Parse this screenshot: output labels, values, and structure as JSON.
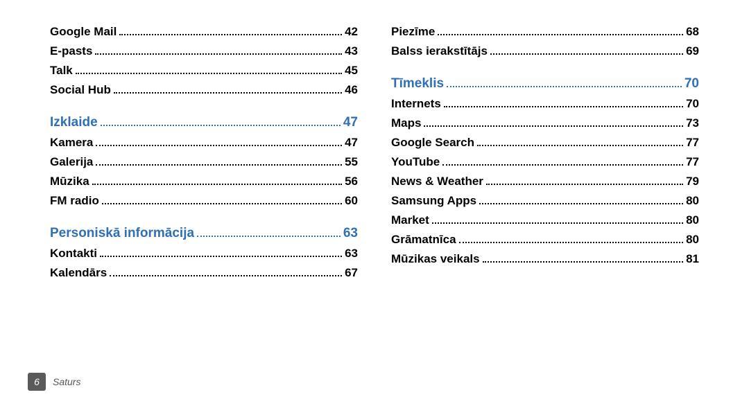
{
  "columns": [
    {
      "entries": [
        {
          "type": "item",
          "label": "Google Mail",
          "page": "42"
        },
        {
          "type": "item",
          "label": "E-pasts",
          "page": "43"
        },
        {
          "type": "item",
          "label": "Talk",
          "page": "45"
        },
        {
          "type": "item",
          "label": "Social Hub",
          "page": "46"
        },
        {
          "type": "section",
          "label": "Izklaide",
          "page": "47"
        },
        {
          "type": "item",
          "label": "Kamera",
          "page": "47"
        },
        {
          "type": "item",
          "label": "Galerija",
          "page": "55"
        },
        {
          "type": "item",
          "label": "Mūzika",
          "page": "56"
        },
        {
          "type": "item",
          "label": "FM radio",
          "page": "60"
        },
        {
          "type": "section",
          "label": "Personiskā informācija",
          "page": "63"
        },
        {
          "type": "item",
          "label": "Kontakti",
          "page": "63"
        },
        {
          "type": "item",
          "label": "Kalendārs",
          "page": "67"
        }
      ]
    },
    {
      "entries": [
        {
          "type": "item",
          "label": "Piezīme",
          "page": "68"
        },
        {
          "type": "item",
          "label": "Balss ierakstītājs",
          "page": "69"
        },
        {
          "type": "section",
          "label": "Tīmeklis",
          "page": "70"
        },
        {
          "type": "item",
          "label": "Internets",
          "page": "70"
        },
        {
          "type": "item",
          "label": "Maps",
          "page": "73"
        },
        {
          "type": "item",
          "label": "Google Search",
          "page": "77"
        },
        {
          "type": "item",
          "label": "YouTube",
          "page": "77"
        },
        {
          "type": "item",
          "label": "News & Weather",
          "page": "79"
        },
        {
          "type": "item",
          "label": "Samsung Apps",
          "page": "80"
        },
        {
          "type": "item",
          "label": "Market",
          "page": "80"
        },
        {
          "type": "item",
          "label": "Grāmatnīca",
          "page": "80"
        },
        {
          "type": "item",
          "label": "Mūzikas veikals",
          "page": "81"
        }
      ]
    }
  ],
  "footer": {
    "page_number": "6",
    "label": "Saturs"
  },
  "colors": {
    "section": "#2f6fb5",
    "text": "#000000",
    "badge_bg": "#5a5a5a",
    "footer_text": "#555555"
  }
}
